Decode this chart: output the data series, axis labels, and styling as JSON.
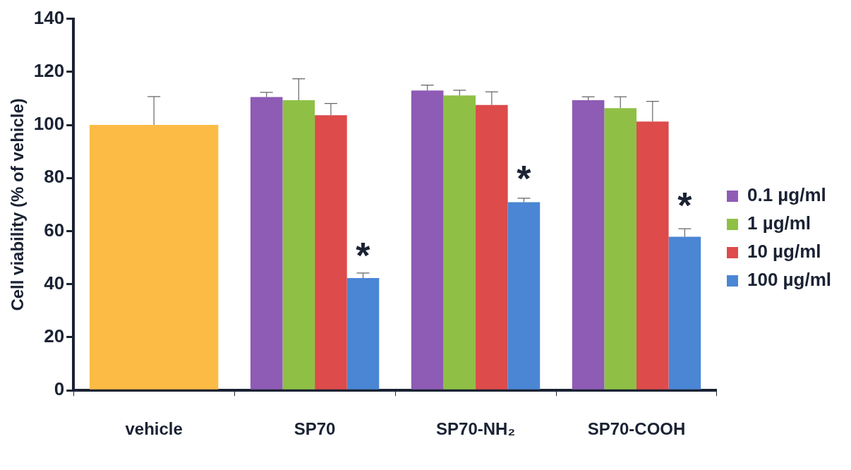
{
  "chart_data": {
    "type": "bar",
    "ylabel": "Cell viability (% of vehicle)",
    "categories": [
      "vehicle",
      "SP70",
      "SP70-NH₂",
      "SP70-COOH"
    ],
    "series": [
      {
        "color": "#fbbb45",
        "values": [
          100,
          null,
          null,
          null
        ],
        "errors": [
          10.7,
          null,
          null,
          null
        ]
      },
      {
        "name": "0.1 µg/ml",
        "color": "#8e5bb5",
        "values": [
          null,
          110.5,
          113,
          109.3
        ],
        "errors": [
          null,
          1.8,
          2,
          1.3
        ]
      },
      {
        "name": "1 µg/ml",
        "color": "#8fc045",
        "values": [
          null,
          109.3,
          111.1,
          106.3
        ],
        "errors": [
          null,
          8.1,
          2,
          4.3
        ]
      },
      {
        "name": "10 µg/ml",
        "color": "#dd4b4b",
        "values": [
          null,
          103.7,
          107.5,
          101.3
        ],
        "errors": [
          null,
          4.4,
          5,
          7.6
        ]
      },
      {
        "name": "100 µg/ml",
        "color": "#4a86d4",
        "values": [
          null,
          42.3,
          70.9,
          57.9
        ],
        "errors": [
          null,
          1.9,
          1.5,
          3
        ]
      }
    ],
    "annotations": [
      {
        "text": "*",
        "x": "SP70",
        "y": 53
      },
      {
        "text": "*",
        "x": "SP70-NH₂",
        "y": 82
      },
      {
        "text": "*",
        "x": "SP70-COOH",
        "y": 72
      }
    ],
    "ylim": [
      0,
      140
    ],
    "yticks": [
      0,
      20,
      40,
      60,
      80,
      100,
      120,
      140
    ],
    "grid": false,
    "legend": "right"
  }
}
